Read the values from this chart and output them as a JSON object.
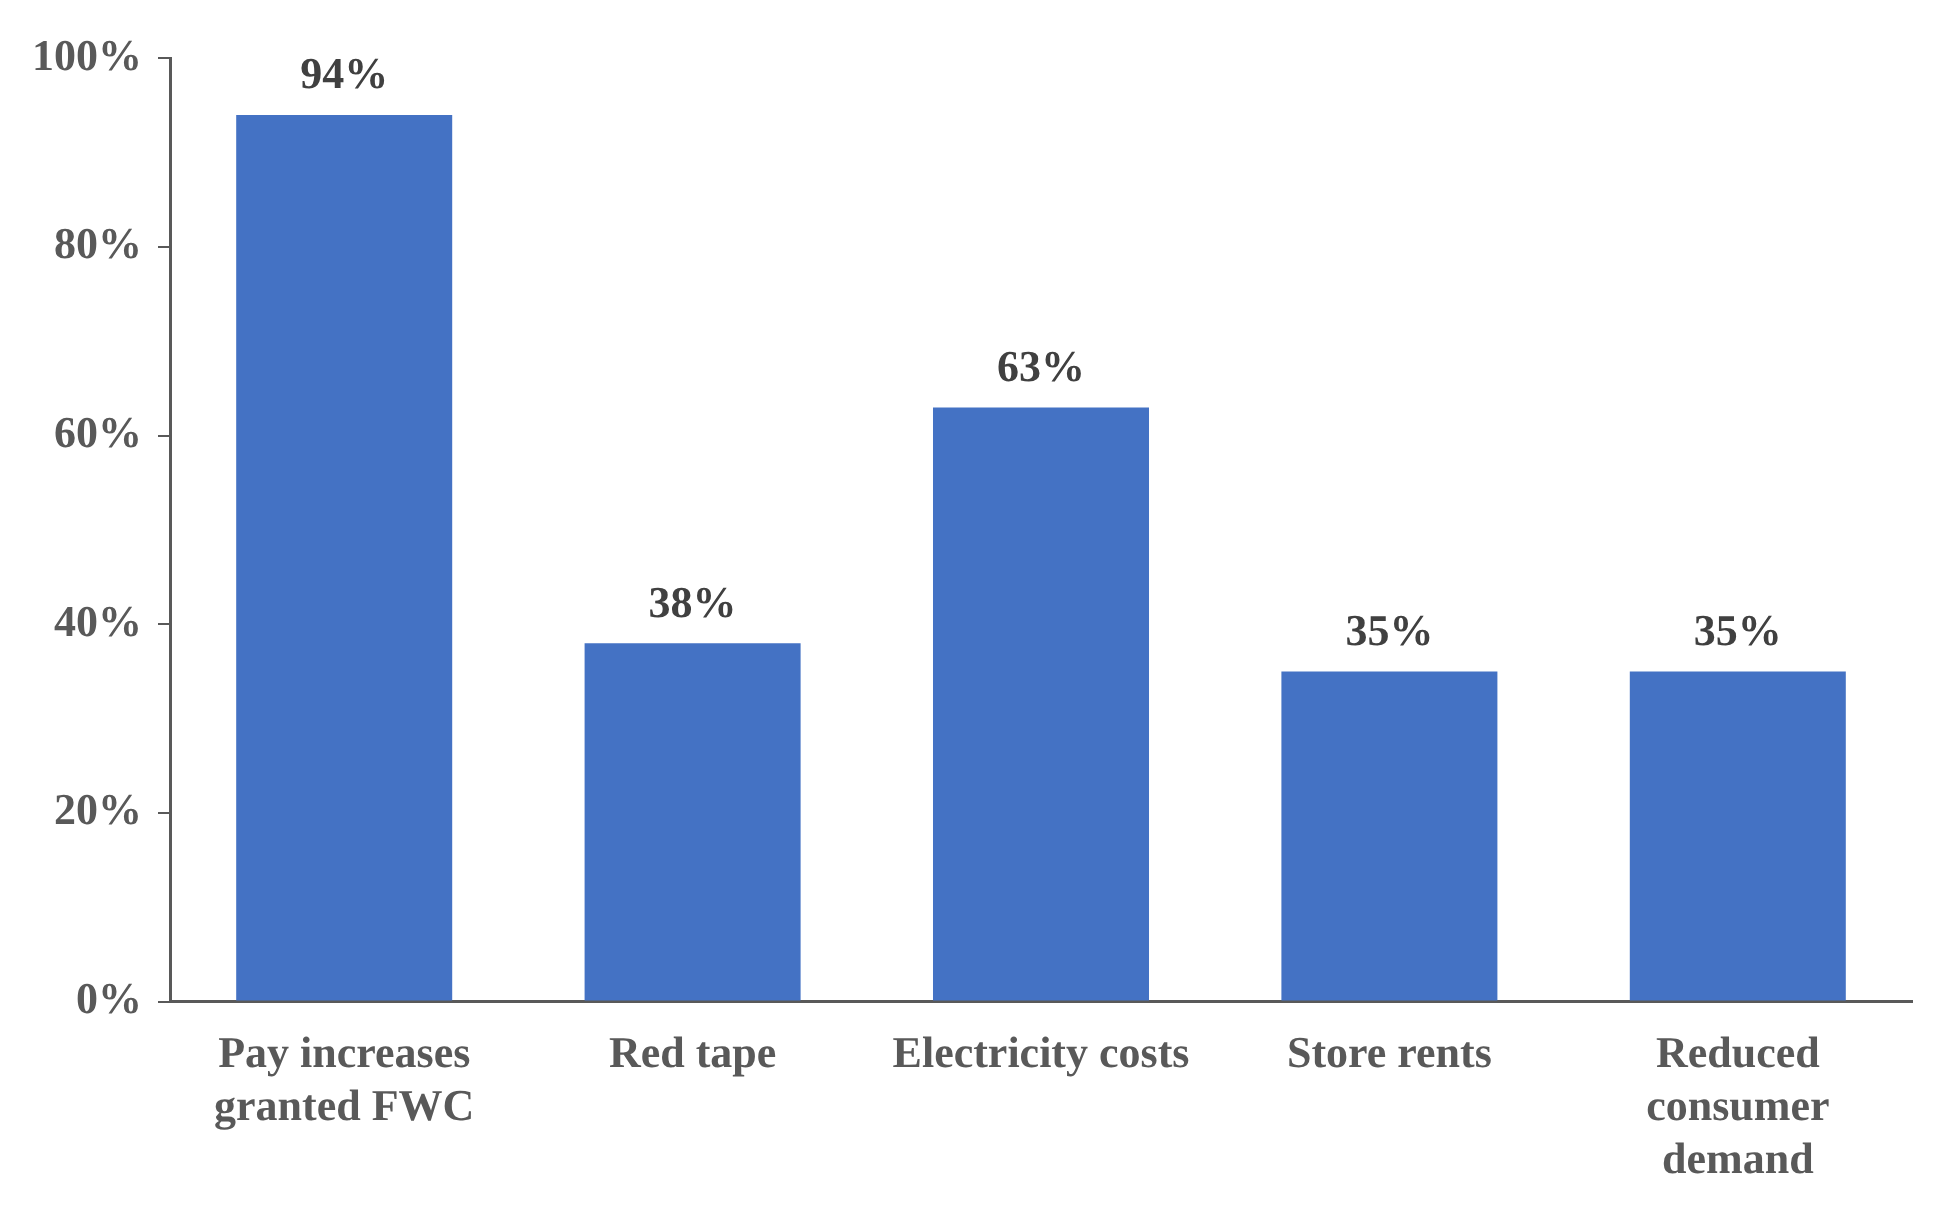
{
  "chart_data": {
    "type": "bar",
    "categories": [
      "Pay increases granted  FWC",
      "Red tape",
      "Electricity costs",
      "Store rents",
      "Reduced consumer demand"
    ],
    "values": [
      94,
      38,
      63,
      35,
      35
    ],
    "value_labels": [
      "94%",
      "38%",
      "63%",
      "35%",
      "35%"
    ],
    "color": "#4472c4",
    "ylim": [
      0,
      100
    ],
    "yticks": [
      {
        "value": 0,
        "label": "0%"
      },
      {
        "value": 20,
        "label": "20%"
      },
      {
        "value": 40,
        "label": "40%"
      },
      {
        "value": 60,
        "label": "60%"
      },
      {
        "value": 80,
        "label": "80%"
      },
      {
        "value": 100,
        "label": "100%"
      }
    ],
    "grid": false,
    "legend": false
  }
}
